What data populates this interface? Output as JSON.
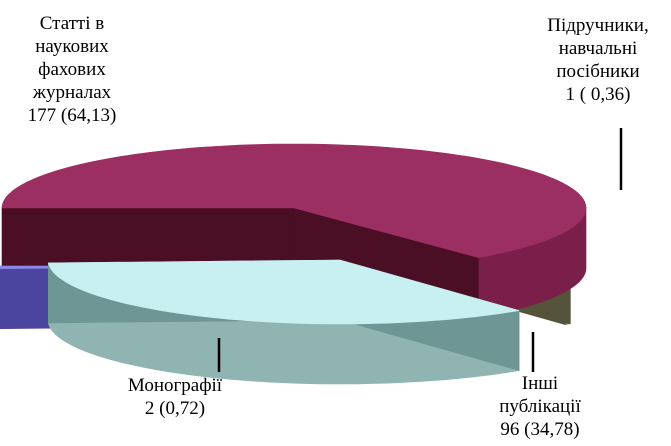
{
  "chart_data": {
    "type": "pie",
    "style": "3d-exploded",
    "unit_note": "",
    "slices": [
      {
        "key": "articles",
        "lines": [
          "Статті в",
          "наукових",
          "фахових",
          "журналах",
          "177 (64,13)"
        ],
        "count": 177,
        "percent": 64.13,
        "top_color": "#9B2F62",
        "side_color": "#7A1F4A",
        "cut_color": "#4A0E25"
      },
      {
        "key": "textbooks",
        "lines": [
          "Підручники,",
          "навчальні",
          "посібники",
          "1 ( 0,36)"
        ],
        "count": 1,
        "percent": 0.36,
        "top_color": "#8C8A66",
        "side_color": "#6F6D4E",
        "cut_color": "#55533A"
      },
      {
        "key": "other",
        "lines": [
          "Інші",
          "публікації",
          "96 (34,78)"
        ],
        "count": 96,
        "percent": 34.78,
        "top_color": "#C8F0F0",
        "side_color": "#8FB4B2",
        "cut_color": "#6E9694"
      },
      {
        "key": "monographs",
        "lines": [
          "Монографії",
          "2 (0,72)"
        ],
        "count": 2,
        "percent": 0.72,
        "top_color": "#8E86E8",
        "side_color": "#5E56B4",
        "cut_color": "#4C45A0"
      }
    ]
  }
}
